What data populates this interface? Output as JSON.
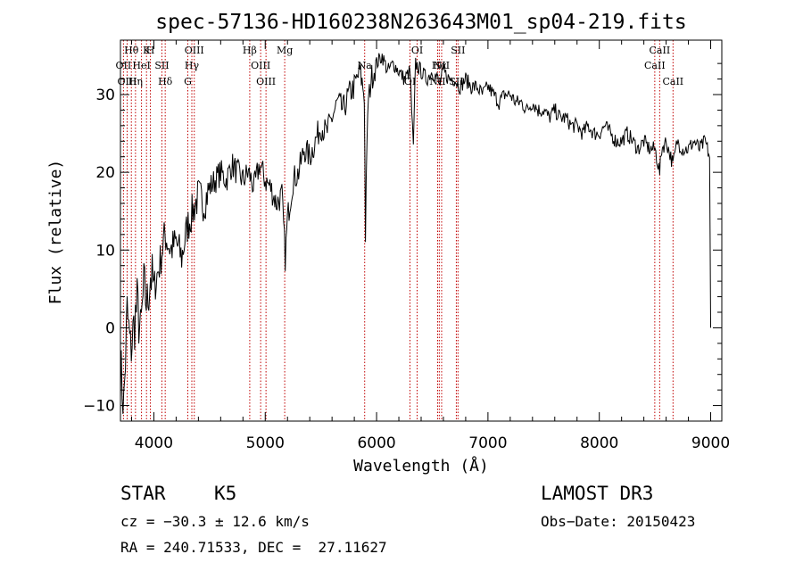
{
  "chart_data": {
    "type": "line",
    "title": "spec-57136-HD160238N263643M01_sp04-219.fits",
    "xlabel": "Wavelength (Å)",
    "ylabel": "Flux (relative)",
    "xlim": [
      3700,
      9100
    ],
    "ylim": [
      -12,
      37
    ],
    "xticks": [
      4000,
      5000,
      6000,
      7000,
      8000,
      9000
    ],
    "yticks": [
      -10,
      0,
      10,
      20,
      30
    ],
    "series": [
      {
        "name": "flux",
        "x": [
          3700,
          3730,
          3760,
          3790,
          3820,
          3850,
          3880,
          3910,
          3940,
          3970,
          4000,
          4050,
          4100,
          4150,
          4200,
          4250,
          4300,
          4350,
          4400,
          4450,
          4500,
          4550,
          4600,
          4650,
          4700,
          4750,
          4800,
          4850,
          4900,
          4950,
          5000,
          5050,
          5100,
          5150,
          5180,
          5200,
          5250,
          5300,
          5350,
          5400,
          5450,
          5500,
          5550,
          5600,
          5650,
          5700,
          5750,
          5800,
          5850,
          5890,
          5900,
          5920,
          5950,
          6000,
          6050,
          6100,
          6150,
          6200,
          6250,
          6300,
          6330,
          6350,
          6400,
          6450,
          6500,
          6550,
          6563,
          6580,
          6600,
          6650,
          6700,
          6750,
          6800,
          6850,
          6900,
          6950,
          7000,
          7050,
          7100,
          7150,
          7200,
          7250,
          7300,
          7350,
          7400,
          7450,
          7500,
          7550,
          7600,
          7650,
          7700,
          7750,
          7800,
          7850,
          7900,
          7950,
          8000,
          8050,
          8100,
          8150,
          8200,
          8250,
          8300,
          8350,
          8400,
          8450,
          8500,
          8542,
          8560,
          8600,
          8662,
          8700,
          8750,
          8800,
          8850,
          8900,
          8950,
          8990,
          9000
        ],
        "y": [
          -5,
          -10,
          2,
          -3,
          0,
          3,
          -1,
          5,
          3,
          7,
          5,
          8,
          12,
          10,
          11,
          9,
          13,
          15,
          17,
          16,
          18,
          19,
          20,
          19,
          21,
          20,
          19,
          20,
          18,
          21,
          19,
          18,
          16,
          17,
          9,
          14,
          19,
          20,
          23,
          22,
          24,
          26,
          25,
          27,
          29,
          28,
          30,
          31,
          33,
          30,
          12,
          28,
          32,
          34,
          35,
          33,
          34,
          33,
          32,
          33,
          23,
          34,
          33,
          32,
          33,
          32,
          31,
          32,
          33,
          32,
          32,
          31,
          32,
          31,
          31,
          30,
          31,
          30,
          29,
          30,
          30,
          29,
          29,
          28,
          29,
          28,
          28,
          27,
          28,
          27,
          27,
          26,
          26,
          25,
          26,
          25,
          25,
          26,
          25,
          24,
          24,
          25,
          24,
          23,
          24,
          23,
          23,
          20,
          23,
          24,
          21,
          24,
          23,
          23,
          24,
          23,
          24,
          22,
          0
        ]
      }
    ],
    "spectral_lines": [
      {
        "label": "Hθ",
        "wl": 3798
      },
      {
        "label": "OII",
        "wl": 3727
      },
      {
        "label": "OIII",
        "wl": 3760
      },
      {
        "label": "K",
        "wl": 3934
      },
      {
        "label": "HeI",
        "wl": 3889
      },
      {
        "label": "Hη",
        "wl": 3835
      },
      {
        "label": "H",
        "wl": 3969
      },
      {
        "label": "SII",
        "wl": 4072
      },
      {
        "label": "Hδ",
        "wl": 4102
      },
      {
        "label": "OIII",
        "wl": 4363
      },
      {
        "label": "Hγ",
        "wl": 4341
      },
      {
        "label": "G",
        "wl": 4305
      },
      {
        "label": "Hβ",
        "wl": 4861
      },
      {
        "label": "OIII",
        "wl": 4959
      },
      {
        "label": "OIII",
        "wl": 5007
      },
      {
        "label": "Mg",
        "wl": 5175
      },
      {
        "label": "Na",
        "wl": 5893
      },
      {
        "label": "OI",
        "wl": 6300
      },
      {
        "label": "OI",
        "wl": 6364
      },
      {
        "label": "Hα",
        "wl": 6563
      },
      {
        "label": "SII",
        "wl": 6716
      },
      {
        "label": "SII",
        "wl": 6731
      },
      {
        "label": "NII",
        "wl": 6584
      },
      {
        "label": "NII",
        "wl": 6548
      },
      {
        "label": "CaII",
        "wl": 8542
      },
      {
        "label": "CaII",
        "wl": 8498
      },
      {
        "label": "CaII",
        "wl": 8662
      }
    ]
  },
  "info": {
    "class": "STAR",
    "subclass": "K5",
    "survey": "LAMOST DR3",
    "cz": "cz = −30.3 ± 12.6 km/s",
    "obs_date": "Obs−Date: 20150423",
    "coords": "RA = 240.71533, DEC =  27.11627"
  }
}
